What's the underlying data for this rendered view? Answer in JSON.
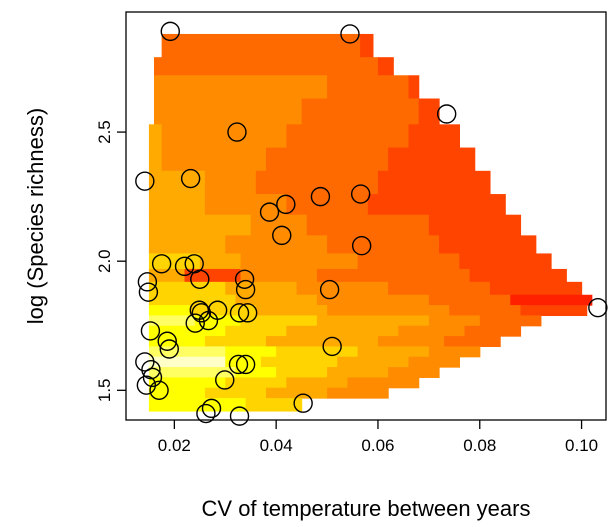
{
  "chart_data": {
    "type": "heatmap",
    "xlabel": "CV of temperature between years",
    "ylabel": "log (Species richness)",
    "xlim": [
      0.0105,
      0.1048
    ],
    "ylim": [
      1.385,
      2.965
    ],
    "x_ticks": [
      0.02,
      0.04,
      0.06,
      0.08,
      0.1
    ],
    "x_tick_labels": [
      "0.02",
      "0.04",
      "0.06",
      "0.08",
      "0.10"
    ],
    "y_ticks": [
      1.5,
      2.0,
      2.5
    ],
    "y_tick_labels": [
      "1.5",
      "2.0",
      "2.5"
    ],
    "grid": false,
    "colors": {
      "low": "#ffffc8",
      "light_yellow": "#ffff64",
      "yellow": "#ffff00",
      "yellow_orange": "#ffd400",
      "amber": "#ffaa00",
      "orange": "#ff8c00",
      "dark_orange": "#ff6a00",
      "red_orange": "#ff4400",
      "red": "#ff2000"
    },
    "points": [
      {
        "x": 0.0192,
        "y": 2.89
      },
      {
        "x": 0.0545,
        "y": 2.88
      },
      {
        "x": 0.0735,
        "y": 2.57
      },
      {
        "x": 0.0323,
        "y": 2.5
      },
      {
        "x": 0.0142,
        "y": 2.31
      },
      {
        "x": 0.0232,
        "y": 2.32
      },
      {
        "x": 0.0487,
        "y": 2.25
      },
      {
        "x": 0.0566,
        "y": 2.26
      },
      {
        "x": 0.0419,
        "y": 2.22
      },
      {
        "x": 0.0387,
        "y": 2.19
      },
      {
        "x": 0.0411,
        "y": 2.1
      },
      {
        "x": 0.0568,
        "y": 2.06
      },
      {
        "x": 0.0175,
        "y": 1.99
      },
      {
        "x": 0.022,
        "y": 1.98
      },
      {
        "x": 0.0239,
        "y": 1.99
      },
      {
        "x": 0.025,
        "y": 1.93
      },
      {
        "x": 0.0338,
        "y": 1.93
      },
      {
        "x": 0.0147,
        "y": 1.92
      },
      {
        "x": 0.0149,
        "y": 1.88
      },
      {
        "x": 0.034,
        "y": 1.89
      },
      {
        "x": 0.0505,
        "y": 1.89
      },
      {
        "x": 0.1032,
        "y": 1.82
      },
      {
        "x": 0.0249,
        "y": 1.81
      },
      {
        "x": 0.0253,
        "y": 1.8
      },
      {
        "x": 0.0285,
        "y": 1.81
      },
      {
        "x": 0.0328,
        "y": 1.8
      },
      {
        "x": 0.0344,
        "y": 1.8
      },
      {
        "x": 0.0241,
        "y": 1.76
      },
      {
        "x": 0.0267,
        "y": 1.77
      },
      {
        "x": 0.0153,
        "y": 1.73
      },
      {
        "x": 0.0186,
        "y": 1.69
      },
      {
        "x": 0.019,
        "y": 1.66
      },
      {
        "x": 0.051,
        "y": 1.67
      },
      {
        "x": 0.0142,
        "y": 1.61
      },
      {
        "x": 0.0326,
        "y": 1.6
      },
      {
        "x": 0.034,
        "y": 1.6
      },
      {
        "x": 0.0154,
        "y": 1.58
      },
      {
        "x": 0.0157,
        "y": 1.55
      },
      {
        "x": 0.0299,
        "y": 1.54
      },
      {
        "x": 0.0145,
        "y": 1.52
      },
      {
        "x": 0.017,
        "y": 1.5
      },
      {
        "x": 0.0453,
        "y": 1.45
      },
      {
        "x": 0.0273,
        "y": 1.43
      },
      {
        "x": 0.0262,
        "y": 1.41
      },
      {
        "x": 0.0328,
        "y": 1.4
      }
    ],
    "grid_rows": [
      {
        "y0": 2.79,
        "y1": 2.88,
        "segments": [
          [
            0.0175,
            0.0565,
            "dark_orange"
          ],
          [
            0.0565,
            0.059,
            "red_orange"
          ]
        ]
      },
      {
        "y0": 2.72,
        "y1": 2.79,
        "segments": [
          [
            0.016,
            0.06,
            "dark_orange"
          ],
          [
            0.06,
            0.063,
            "red_orange"
          ]
        ]
      },
      {
        "y0": 2.63,
        "y1": 2.72,
        "segments": [
          [
            0.016,
            0.05,
            "orange"
          ],
          [
            0.05,
            0.066,
            "dark_orange"
          ],
          [
            0.066,
            0.068,
            "red_orange"
          ]
        ]
      },
      {
        "y0": 2.53,
        "y1": 2.63,
        "segments": [
          [
            0.016,
            0.045,
            "orange"
          ],
          [
            0.045,
            0.068,
            "dark_orange"
          ],
          [
            0.068,
            0.072,
            "red_orange"
          ]
        ]
      },
      {
        "y0": 2.44,
        "y1": 2.53,
        "segments": [
          [
            0.015,
            0.0175,
            "amber"
          ],
          [
            0.0175,
            0.042,
            "orange"
          ],
          [
            0.042,
            0.066,
            "dark_orange"
          ],
          [
            0.066,
            0.076,
            "red_orange"
          ]
        ]
      },
      {
        "y0": 2.35,
        "y1": 2.44,
        "segments": [
          [
            0.015,
            0.0175,
            "amber"
          ],
          [
            0.0175,
            0.038,
            "orange"
          ],
          [
            0.038,
            0.062,
            "dark_orange"
          ],
          [
            0.062,
            0.079,
            "red_orange"
          ]
        ]
      },
      {
        "y0": 2.26,
        "y1": 2.35,
        "segments": [
          [
            0.015,
            0.026,
            "amber"
          ],
          [
            0.026,
            0.036,
            "orange"
          ],
          [
            0.036,
            0.06,
            "dark_orange"
          ],
          [
            0.06,
            0.082,
            "red_orange"
          ]
        ]
      },
      {
        "y0": 2.18,
        "y1": 2.26,
        "segments": [
          [
            0.015,
            0.026,
            "amber"
          ],
          [
            0.026,
            0.042,
            "orange"
          ],
          [
            0.042,
            0.058,
            "dark_orange"
          ],
          [
            0.058,
            0.085,
            "red_orange"
          ]
        ]
      },
      {
        "y0": 2.1,
        "y1": 2.18,
        "segments": [
          [
            0.015,
            0.035,
            "amber"
          ],
          [
            0.035,
            0.046,
            "orange"
          ],
          [
            0.046,
            0.07,
            "dark_orange"
          ],
          [
            0.07,
            0.088,
            "red_orange"
          ]
        ]
      },
      {
        "y0": 2.03,
        "y1": 2.1,
        "segments": [
          [
            0.015,
            0.03,
            "amber"
          ],
          [
            0.03,
            0.05,
            "orange"
          ],
          [
            0.05,
            0.072,
            "dark_orange"
          ],
          [
            0.072,
            0.091,
            "red_orange"
          ]
        ]
      },
      {
        "y0": 1.97,
        "y1": 2.03,
        "segments": [
          [
            0.015,
            0.025,
            "yellow_orange"
          ],
          [
            0.025,
            0.033,
            "amber"
          ],
          [
            0.033,
            0.056,
            "orange"
          ],
          [
            0.056,
            0.076,
            "dark_orange"
          ],
          [
            0.076,
            0.094,
            "red_orange"
          ]
        ]
      },
      {
        "y0": 1.92,
        "y1": 1.97,
        "segments": [
          [
            0.015,
            0.022,
            "amber"
          ],
          [
            0.022,
            0.033,
            "red_orange"
          ],
          [
            0.033,
            0.048,
            "orange"
          ],
          [
            0.048,
            0.078,
            "dark_orange"
          ],
          [
            0.078,
            0.097,
            "red_orange"
          ]
        ]
      },
      {
        "y0": 1.87,
        "y1": 1.92,
        "segments": [
          [
            0.015,
            0.03,
            "yellow_orange"
          ],
          [
            0.03,
            0.044,
            "amber"
          ],
          [
            0.044,
            0.062,
            "orange"
          ],
          [
            0.062,
            0.082,
            "dark_orange"
          ],
          [
            0.082,
            0.1,
            "red_orange"
          ]
        ]
      },
      {
        "y0": 1.83,
        "y1": 1.87,
        "segments": [
          [
            0.015,
            0.032,
            "yellow_orange"
          ],
          [
            0.032,
            0.048,
            "amber"
          ],
          [
            0.048,
            0.07,
            "orange"
          ],
          [
            0.07,
            0.086,
            "dark_orange"
          ],
          [
            0.086,
            0.102,
            "red"
          ]
        ]
      },
      {
        "y0": 1.79,
        "y1": 1.83,
        "segments": [
          [
            0.015,
            0.023,
            "yellow"
          ],
          [
            0.023,
            0.036,
            "yellow_orange"
          ],
          [
            0.036,
            0.05,
            "amber"
          ],
          [
            0.05,
            0.074,
            "orange"
          ],
          [
            0.074,
            0.088,
            "dark_orange"
          ],
          [
            0.088,
            0.101,
            "red_orange"
          ]
        ]
      },
      {
        "y0": 1.75,
        "y1": 1.79,
        "segments": [
          [
            0.015,
            0.024,
            "light_yellow"
          ],
          [
            0.024,
            0.033,
            "yellow"
          ],
          [
            0.033,
            0.048,
            "yellow_orange"
          ],
          [
            0.048,
            0.07,
            "amber"
          ],
          [
            0.07,
            0.08,
            "orange"
          ],
          [
            0.08,
            0.092,
            "dark_orange"
          ]
        ]
      },
      {
        "y0": 1.71,
        "y1": 1.75,
        "segments": [
          [
            0.015,
            0.03,
            "yellow"
          ],
          [
            0.03,
            0.042,
            "yellow_orange"
          ],
          [
            0.042,
            0.064,
            "amber"
          ],
          [
            0.064,
            0.077,
            "orange"
          ],
          [
            0.077,
            0.088,
            "dark_orange"
          ]
        ]
      },
      {
        "y0": 1.67,
        "y1": 1.71,
        "segments": [
          [
            0.015,
            0.026,
            "yellow"
          ],
          [
            0.026,
            0.038,
            "yellow_orange"
          ],
          [
            0.038,
            0.06,
            "amber"
          ],
          [
            0.06,
            0.073,
            "orange"
          ],
          [
            0.073,
            0.084,
            "dark_orange"
          ]
        ]
      },
      {
        "y0": 1.63,
        "y1": 1.67,
        "segments": [
          [
            0.015,
            0.03,
            "light_yellow"
          ],
          [
            0.03,
            0.04,
            "yellow"
          ],
          [
            0.04,
            0.056,
            "yellow_orange"
          ],
          [
            0.056,
            0.07,
            "amber"
          ],
          [
            0.07,
            0.08,
            "orange"
          ]
        ]
      },
      {
        "y0": 1.59,
        "y1": 1.63,
        "segments": [
          [
            0.015,
            0.03,
            "low"
          ],
          [
            0.03,
            0.037,
            "yellow"
          ],
          [
            0.037,
            0.052,
            "yellow_orange"
          ],
          [
            0.052,
            0.066,
            "amber"
          ],
          [
            0.066,
            0.076,
            "orange"
          ]
        ]
      },
      {
        "y0": 1.55,
        "y1": 1.59,
        "segments": [
          [
            0.015,
            0.032,
            "light_yellow"
          ],
          [
            0.032,
            0.04,
            "yellow"
          ],
          [
            0.04,
            0.05,
            "yellow_orange"
          ],
          [
            0.05,
            0.062,
            "amber"
          ],
          [
            0.062,
            0.072,
            "orange"
          ]
        ]
      },
      {
        "y0": 1.51,
        "y1": 1.55,
        "segments": [
          [
            0.015,
            0.03,
            "yellow"
          ],
          [
            0.03,
            0.042,
            "yellow_orange"
          ],
          [
            0.042,
            0.054,
            "amber"
          ],
          [
            0.054,
            0.068,
            "orange"
          ]
        ]
      },
      {
        "y0": 1.47,
        "y1": 1.51,
        "segments": [
          [
            0.015,
            0.026,
            "yellow"
          ],
          [
            0.026,
            0.038,
            "yellow_orange"
          ],
          [
            0.038,
            0.05,
            "amber"
          ],
          [
            0.05,
            0.062,
            "orange"
          ]
        ]
      },
      {
        "y0": 1.42,
        "y1": 1.47,
        "segments": [
          [
            0.015,
            0.034,
            "yellow"
          ],
          [
            0.034,
            0.045,
            "yellow_orange"
          ]
        ]
      }
    ]
  }
}
